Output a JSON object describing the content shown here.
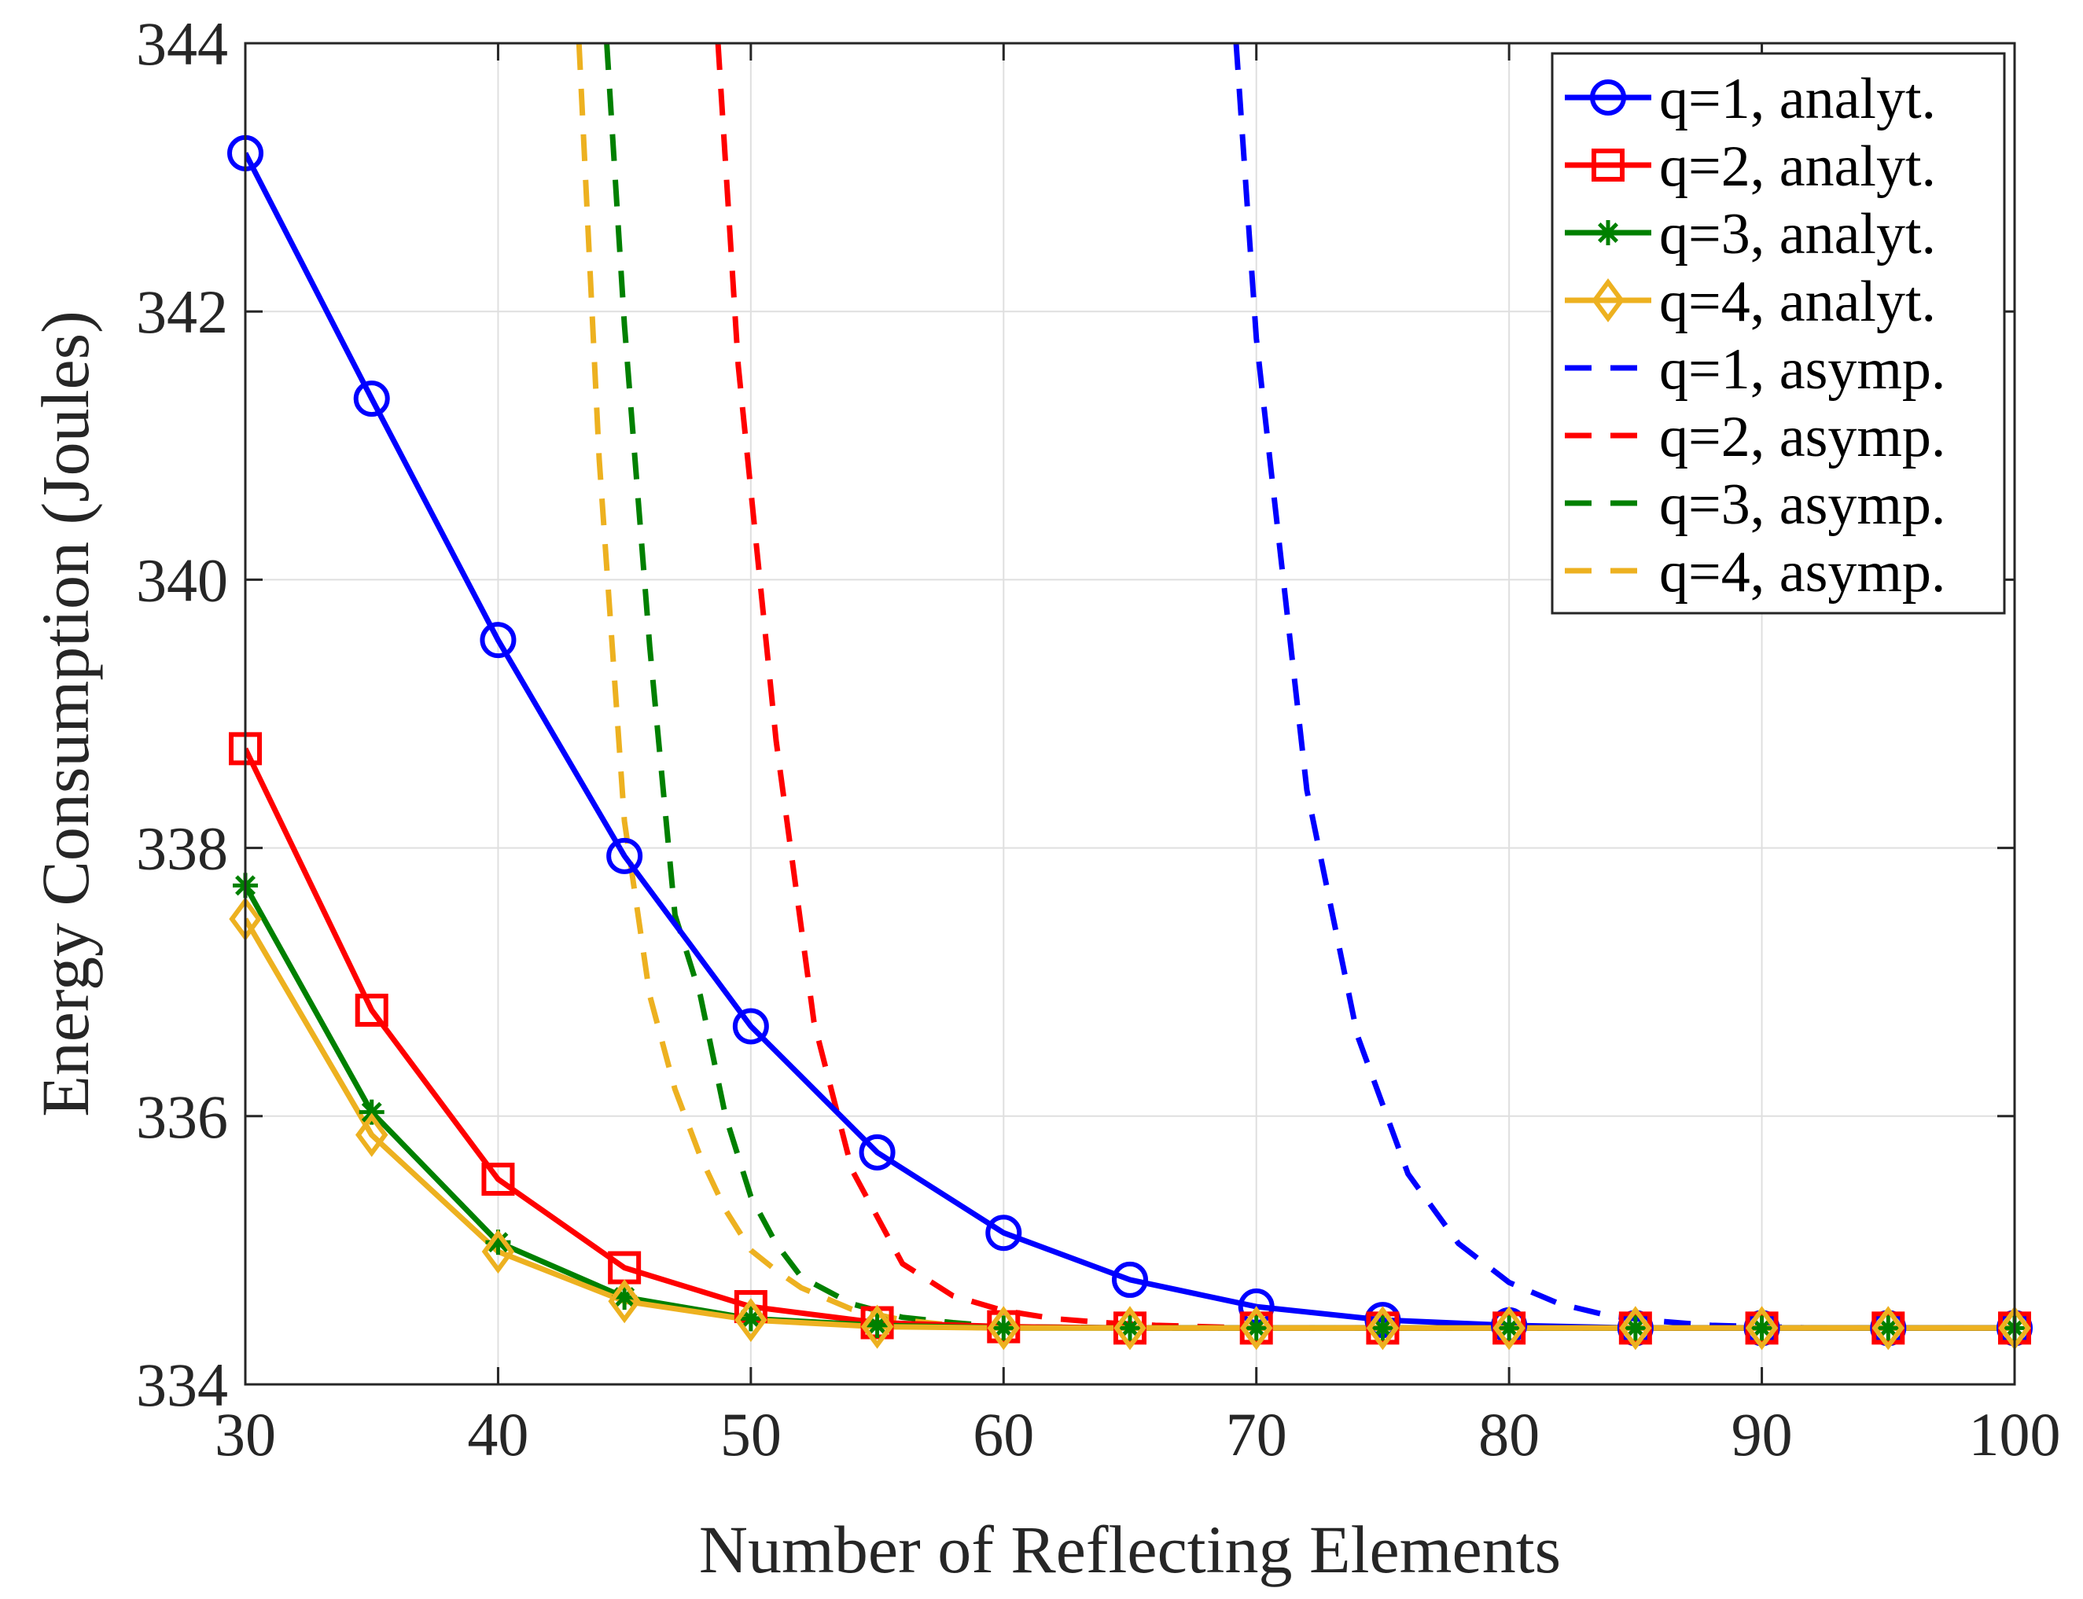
{
  "chart_data": {
    "type": "line",
    "title": "",
    "xlabel": "Number of Reflecting Elements",
    "ylabel": "Energy Consumption (Joules)",
    "xlim": [
      30,
      100
    ],
    "ylim": [
      334,
      344
    ],
    "xticks": [
      30,
      40,
      50,
      60,
      70,
      80,
      90,
      100
    ],
    "yticks": [
      334,
      336,
      338,
      340,
      342,
      344
    ],
    "grid": true,
    "legend_position": "top-right",
    "series": [
      {
        "name": "q=1, analyt.",
        "style": "solid",
        "marker": "circle",
        "color": "#0000ff",
        "x": [
          30,
          35,
          40,
          45,
          50,
          55,
          60,
          65,
          70,
          75,
          80,
          85,
          90,
          95,
          100
        ],
        "y": [
          343.18,
          341.35,
          339.55,
          337.94,
          336.67,
          335.73,
          335.13,
          334.78,
          334.58,
          334.48,
          334.44,
          334.42,
          334.42,
          334.42,
          334.42
        ]
      },
      {
        "name": "q=2, analyt.",
        "style": "solid",
        "marker": "square",
        "color": "#ff0000",
        "x": [
          30,
          35,
          40,
          45,
          50,
          55,
          60,
          65,
          70,
          75,
          80,
          85,
          90,
          95,
          100
        ],
        "y": [
          338.74,
          336.79,
          335.53,
          334.87,
          334.58,
          334.46,
          334.43,
          334.42,
          334.42,
          334.42,
          334.42,
          334.42,
          334.42,
          334.42,
          334.42
        ]
      },
      {
        "name": "q=3, analyt.",
        "style": "solid",
        "marker": "asterisk",
        "color": "#008000",
        "x": [
          30,
          35,
          40,
          45,
          50,
          55,
          60,
          65,
          70,
          75,
          80,
          85,
          90,
          95,
          100
        ],
        "y": [
          337.72,
          336.03,
          335.06,
          334.65,
          334.49,
          334.44,
          334.42,
          334.42,
          334.42,
          334.42,
          334.42,
          334.42,
          334.42,
          334.42,
          334.42
        ]
      },
      {
        "name": "q=4, analyt.",
        "style": "solid",
        "marker": "diamond",
        "color": "#edb120",
        "x": [
          30,
          35,
          40,
          45,
          50,
          55,
          60,
          65,
          70,
          75,
          80,
          85,
          90,
          95,
          100
        ],
        "y": [
          337.47,
          335.86,
          334.99,
          334.62,
          334.48,
          334.43,
          334.42,
          334.42,
          334.42,
          334.42,
          334.42,
          334.42,
          334.42,
          334.42,
          334.42
        ]
      },
      {
        "name": "q=1, asymp.",
        "style": "dashed",
        "marker": "none",
        "color": "#0000ff",
        "x": [
          69.2,
          70,
          72,
          74,
          76,
          78,
          80,
          82,
          84,
          86,
          88,
          90,
          92,
          94,
          97,
          100
        ],
        "y": [
          344.0,
          341.8,
          338.43,
          336.6,
          335.57,
          335.05,
          334.76,
          334.6,
          334.51,
          334.47,
          334.44,
          334.43,
          334.42,
          334.42,
          334.42,
          334.42
        ]
      },
      {
        "name": "q=2, asymp.",
        "style": "dashed",
        "marker": "none",
        "color": "#ff0000",
        "x": [
          48.7,
          49.5,
          51,
          52.5,
          54,
          56,
          58,
          60,
          62,
          64,
          66,
          68,
          70,
          75,
          80,
          90,
          100
        ],
        "y": [
          344.0,
          341.6,
          338.8,
          336.7,
          335.6,
          334.9,
          334.66,
          334.55,
          334.49,
          334.46,
          334.44,
          334.43,
          334.42,
          334.42,
          334.42,
          334.42,
          334.42
        ]
      },
      {
        "name": "q=3, asymp.",
        "style": "dashed",
        "marker": "none",
        "color": "#008000",
        "x": [
          44.3,
          45,
          46,
          47,
          48,
          49,
          50,
          51,
          52,
          54,
          56,
          58,
          60,
          65,
          70,
          80,
          90,
          100
        ],
        "y": [
          344.0,
          341.9,
          339.5,
          337.5,
          336.9,
          336.0,
          335.4,
          335.05,
          334.8,
          334.6,
          334.5,
          334.46,
          334.43,
          334.42,
          334.42,
          334.42,
          334.42,
          334.42
        ]
      },
      {
        "name": "q=4, asymp.",
        "style": "dashed",
        "marker": "none",
        "color": "#edb120",
        "x": [
          43.2,
          44,
          45,
          46,
          47,
          48,
          49,
          50,
          51,
          52,
          54,
          56,
          58,
          60,
          65,
          70,
          80,
          90,
          100
        ],
        "y": [
          344.0,
          340.9,
          338.2,
          336.9,
          336.2,
          335.7,
          335.3,
          335.0,
          334.85,
          334.72,
          334.56,
          334.48,
          334.44,
          334.43,
          334.42,
          334.42,
          334.42,
          334.42,
          334.42
        ]
      }
    ]
  }
}
